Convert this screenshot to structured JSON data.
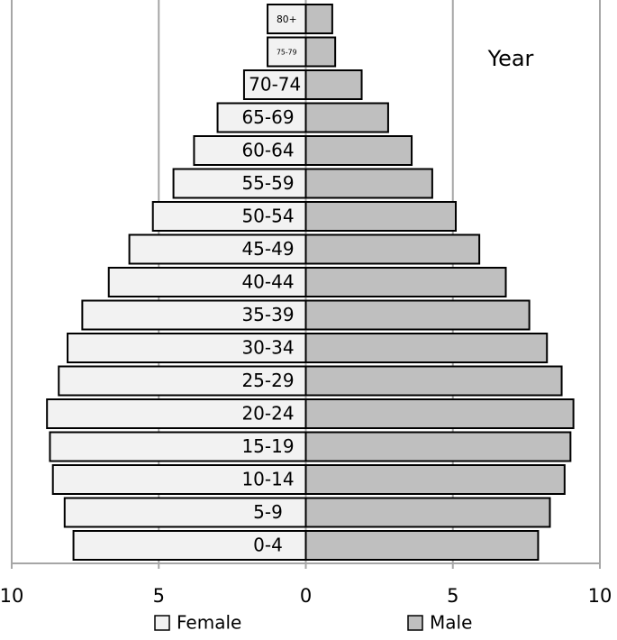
{
  "chart_data": {
    "type": "pyramid",
    "annotation": "Year",
    "categories": [
      "80+",
      "75-79",
      "70-74",
      "65-69",
      "60-64",
      "55-59",
      "50-54",
      "45-49",
      "40-44",
      "35-39",
      "30-34",
      "25-29",
      "20-24",
      "15-19",
      "10-14",
      "5-9",
      "0-4"
    ],
    "series": [
      {
        "name": "Female",
        "color": "#f2f2f2",
        "values": [
          -1.3,
          -1.3,
          -2.1,
          -3.0,
          -3.8,
          -4.5,
          -5.2,
          -6.0,
          -6.7,
          -7.6,
          -8.1,
          -8.4,
          -8.8,
          -8.7,
          -8.6,
          -8.2,
          -7.9
        ]
      },
      {
        "name": "Male",
        "color": "#bfbfbf",
        "values": [
          0.9,
          1.0,
          1.9,
          2.8,
          3.6,
          4.3,
          5.1,
          5.9,
          6.8,
          7.6,
          8.2,
          8.7,
          9.1,
          9.0,
          8.8,
          8.3,
          7.9
        ]
      }
    ],
    "xlim": [
      -10,
      10
    ],
    "xticks": [
      {
        "value": -10,
        "label": "10"
      },
      {
        "value": -5,
        "label": "5"
      },
      0,
      5,
      10
    ],
    "grid": true
  }
}
